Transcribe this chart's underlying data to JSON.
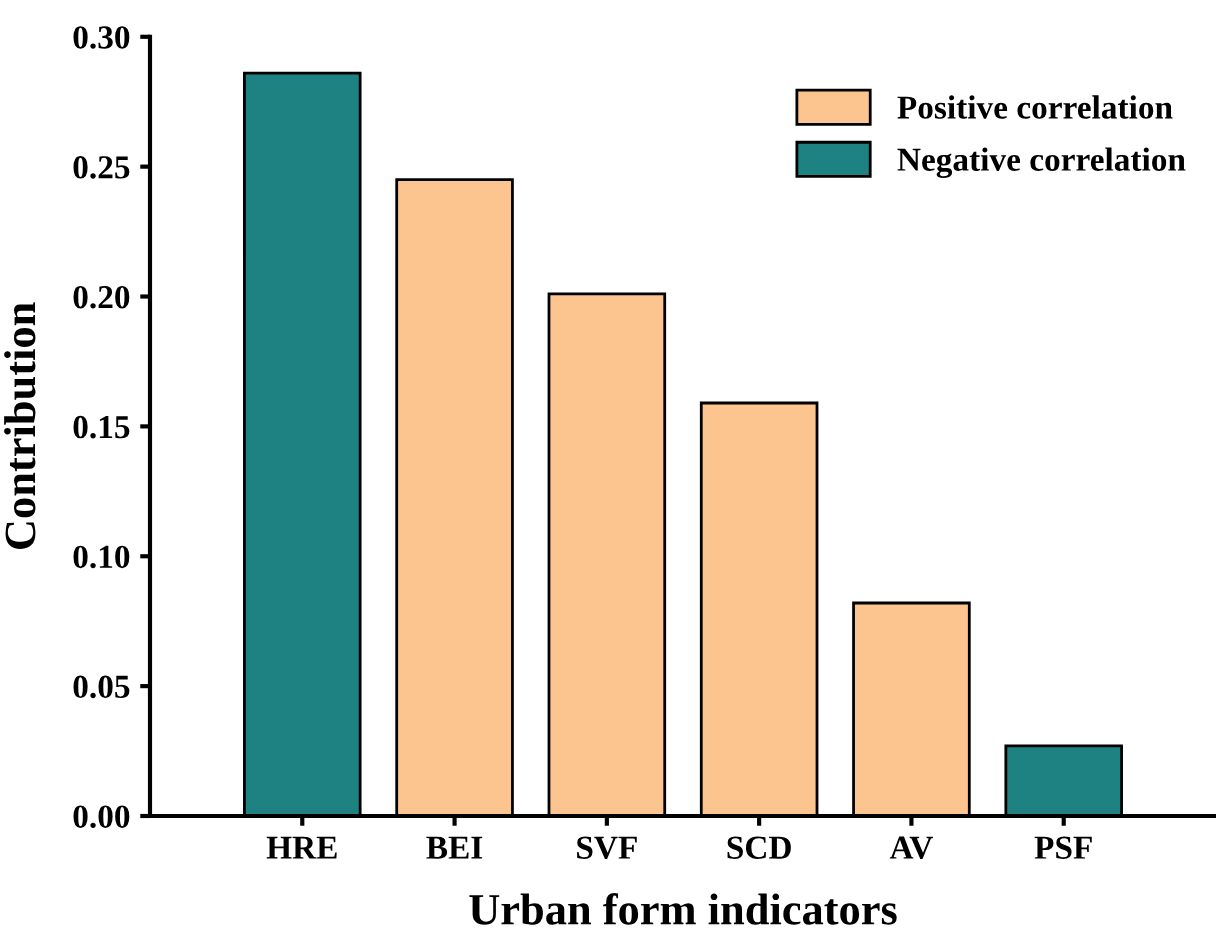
{
  "chart_data": {
    "type": "bar",
    "xlabel": "Urban form indicators",
    "ylabel": "Contribution",
    "categories": [
      "HRE",
      "BEI",
      "SVF",
      "SCD",
      "AV",
      "PSF"
    ],
    "series": [
      {
        "name": "Positive correlation",
        "color": "#fcc58f",
        "values": [
          null,
          0.245,
          0.201,
          0.159,
          0.082,
          null
        ]
      },
      {
        "name": "Negative correlation",
        "color": "#1e8282",
        "values": [
          0.286,
          null,
          null,
          null,
          null,
          0.027
        ]
      }
    ],
    "ylim": [
      0,
      0.3
    ],
    "yticks": [
      {
        "value": 0,
        "label": "0.00"
      },
      {
        "value": 0.05,
        "label": "0.05"
      },
      {
        "value": 0.1,
        "label": "0.10"
      },
      {
        "value": 0.15,
        "label": "0.15"
      },
      {
        "value": 0.2,
        "label": "0.20"
      },
      {
        "value": 0.25,
        "label": "0.25"
      },
      {
        "value": 0.3,
        "label": "0.30"
      }
    ],
    "grid": false,
    "legend": "top right"
  }
}
